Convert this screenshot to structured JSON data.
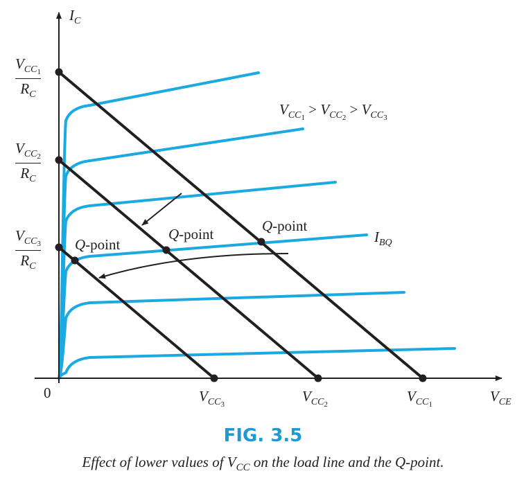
{
  "figure_number": "FIG. 3.5",
  "caption": {
    "pre": "Effect of lower values of ",
    "v": "V",
    "sub": "CC",
    "post": " on the load line and the Q-point."
  },
  "axes": {
    "y_label": {
      "main": "I",
      "sub": "C"
    },
    "x_label": {
      "main": "V",
      "sub": "CE"
    },
    "origin": "0"
  },
  "y_intercepts": [
    {
      "num": "V",
      "num_sub": "CC",
      "num_subsub": "1",
      "den": "R",
      "den_sub": "C"
    },
    {
      "num": "V",
      "num_sub": "CC",
      "num_subsub": "2",
      "den": "R",
      "den_sub": "C"
    },
    {
      "num": "V",
      "num_sub": "CC",
      "num_subsub": "3",
      "den": "R",
      "den_sub": "C"
    }
  ],
  "x_intercepts": [
    {
      "main": "V",
      "sub": "CC",
      "subsub": "3"
    },
    {
      "main": "V",
      "sub": "CC",
      "subsub": "2"
    },
    {
      "main": "V",
      "sub": "CC",
      "subsub": "1"
    }
  ],
  "relation": {
    "v": "V",
    "s": "CC",
    "n1": "1",
    "gt": " > ",
    "n2": "2",
    "n3": "3"
  },
  "ibq_label": {
    "main": "I",
    "sub": "BQ"
  },
  "q_points": [
    {
      "q": "Q",
      "rest": "-point"
    },
    {
      "q": "Q",
      "rest": "-point"
    },
    {
      "q": "Q",
      "rest": "-point"
    }
  ],
  "colors": {
    "curve": "#1aa9e1",
    "line": "#231f20",
    "fig_label": "#1b9ad6"
  }
}
